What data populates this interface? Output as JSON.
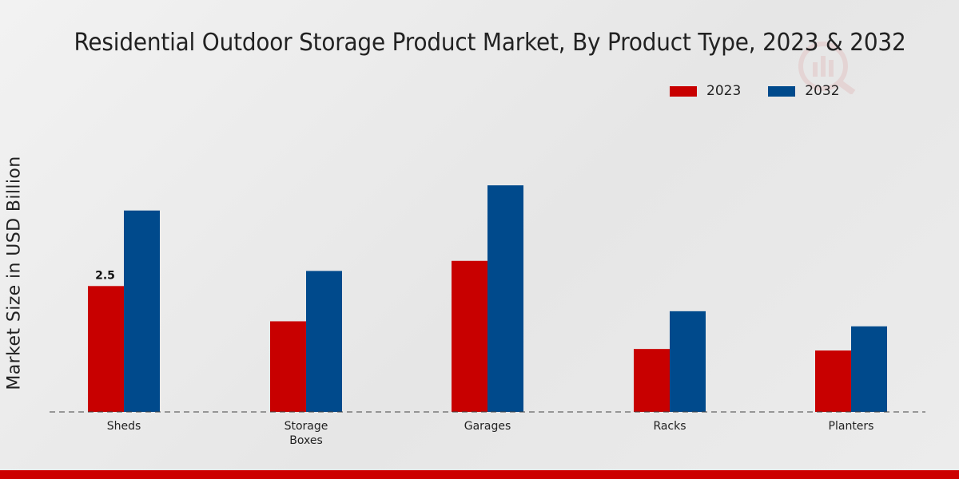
{
  "chart_data": {
    "type": "bar",
    "title": "Residential Outdoor Storage Product Market, By Product Type, 2023 & 2032",
    "xlabel": "",
    "ylabel": "Market Size in USD Billion",
    "categories": [
      "Sheds",
      "Storage Boxes",
      "Garages",
      "Racks",
      "Planters"
    ],
    "series": [
      {
        "name": "2023",
        "color": "#c80000",
        "values": [
          2.5,
          1.8,
          3.0,
          1.25,
          1.22
        ]
      },
      {
        "name": "2032",
        "color": "#004a8c",
        "values": [
          4.0,
          2.8,
          4.5,
          2.0,
          1.7
        ]
      }
    ],
    "data_labels": [
      {
        "series": 0,
        "index": 0,
        "text": "2.5"
      }
    ],
    "ylim": [
      0,
      6.5
    ],
    "grid": false,
    "legend_position": "top-right",
    "baseline_style": "dashed"
  }
}
